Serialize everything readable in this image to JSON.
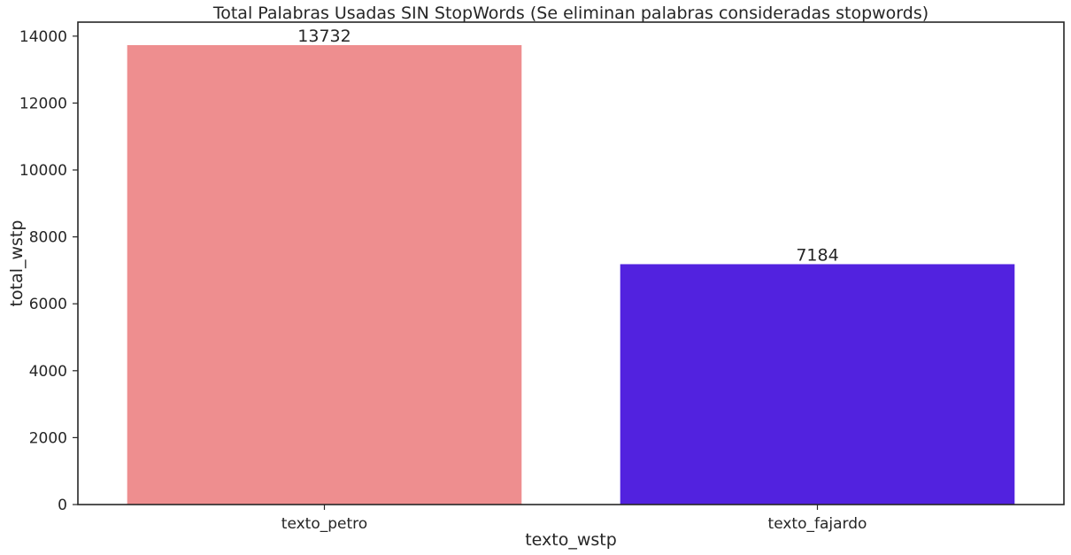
{
  "chart_data": {
    "type": "bar",
    "title": "Total Palabras Usadas SIN StopWords (Se eliminan palabras consideradas stopwords)",
    "xlabel": "texto_wstp",
    "ylabel": "total_wstp",
    "categories": [
      "texto_petro",
      "texto_fajardo"
    ],
    "values": [
      13732,
      7184
    ],
    "data_labels": [
      "13732",
      "7184"
    ],
    "colors": [
      "#ee8e8f",
      "#5222df"
    ],
    "ylim": [
      0,
      14418.6
    ],
    "yticks": [
      0,
      2000,
      4000,
      6000,
      8000,
      10000,
      12000,
      14000
    ],
    "ytick_labels": [
      "0",
      "2000",
      "4000",
      "6000",
      "8000",
      "10000",
      "12000",
      "14000"
    ],
    "grid": false,
    "legend": "none"
  }
}
